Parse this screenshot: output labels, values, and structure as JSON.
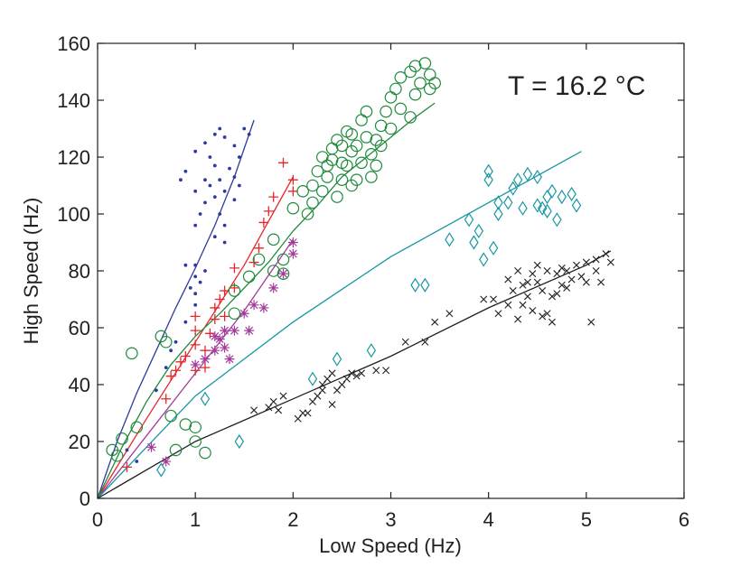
{
  "chart_data": {
    "type": "scatter",
    "title": "",
    "annotation": "T = 16.2 °C",
    "xlabel": "Low Speed (Hz)",
    "ylabel": "High Speed (Hz)",
    "xlim": [
      0,
      6
    ],
    "ylim": [
      0,
      160
    ],
    "xticks": [
      "0",
      "1",
      "2",
      "3",
      "4",
      "5",
      "6"
    ],
    "yticks": [
      "0",
      "20",
      "40",
      "60",
      "80",
      "100",
      "120",
      "140",
      "160"
    ],
    "grid": false,
    "legend": "none",
    "series": [
      {
        "name": "blue-dots",
        "marker": "dot",
        "color": "#2e3a9e",
        "points": [
          [
            0.3,
            17
          ],
          [
            0.4,
            13
          ],
          [
            0.6,
            38
          ],
          [
            0.7,
            46
          ],
          [
            0.75,
            52
          ],
          [
            0.8,
            55
          ],
          [
            0.9,
            62
          ],
          [
            0.9,
            82
          ],
          [
            0.95,
            74
          ],
          [
            1.0,
            68
          ],
          [
            1.0,
            72
          ],
          [
            1.0,
            78
          ],
          [
            1.0,
            82
          ],
          [
            1.05,
            76
          ],
          [
            1.1,
            80
          ],
          [
            1.0,
            96
          ],
          [
            1.05,
            100
          ],
          [
            1.1,
            104
          ],
          [
            1.0,
            108
          ],
          [
            1.1,
            112
          ],
          [
            1.15,
            110
          ],
          [
            1.2,
            106
          ],
          [
            1.25,
            100
          ],
          [
            1.2,
            92
          ],
          [
            1.3,
            96
          ],
          [
            1.3,
            90
          ],
          [
            0.85,
            112
          ],
          [
            0.9,
            115
          ],
          [
            1.0,
            122
          ],
          [
            1.1,
            125
          ],
          [
            1.2,
            128
          ],
          [
            1.25,
            130
          ],
          [
            1.3,
            127
          ],
          [
            1.4,
            124
          ],
          [
            1.45,
            120
          ],
          [
            1.5,
            130
          ],
          [
            1.55,
            128
          ],
          [
            1.35,
            116
          ],
          [
            1.4,
            113
          ],
          [
            1.2,
            117
          ],
          [
            1.15,
            120
          ],
          [
            1.3,
            108
          ],
          [
            1.25,
            112
          ],
          [
            1.4,
            105
          ],
          [
            1.45,
            110
          ]
        ],
        "fit": [
          [
            0,
            0
          ],
          [
            0.2,
            20
          ],
          [
            0.4,
            37
          ],
          [
            0.6,
            52
          ],
          [
            0.8,
            67
          ],
          [
            1.0,
            81
          ],
          [
            1.2,
            96
          ],
          [
            1.4,
            113
          ],
          [
            1.6,
            133
          ]
        ]
      },
      {
        "name": "red-plus",
        "marker": "plus",
        "color": "#e8262a",
        "points": [
          [
            0.3,
            11
          ],
          [
            0.7,
            35
          ],
          [
            0.75,
            43
          ],
          [
            0.8,
            45
          ],
          [
            0.85,
            48
          ],
          [
            0.9,
            50
          ],
          [
            1.0,
            45
          ],
          [
            1.0,
            54
          ],
          [
            1.0,
            59
          ],
          [
            1.0,
            64
          ],
          [
            1.1,
            46
          ],
          [
            1.1,
            52
          ],
          [
            1.15,
            58
          ],
          [
            1.2,
            63
          ],
          [
            1.2,
            67
          ],
          [
            1.25,
            70
          ],
          [
            1.3,
            64
          ],
          [
            1.3,
            73
          ],
          [
            1.4,
            74
          ],
          [
            1.4,
            81
          ],
          [
            1.6,
            83
          ],
          [
            1.65,
            88
          ],
          [
            1.7,
            97
          ],
          [
            1.75,
            101
          ],
          [
            1.8,
            106
          ],
          [
            1.9,
            118
          ],
          [
            2.0,
            108
          ],
          [
            2.0,
            112
          ]
        ],
        "fit": [
          [
            0,
            0
          ],
          [
            0.5,
            28
          ],
          [
            1.0,
            55
          ],
          [
            1.5,
            82
          ],
          [
            2.0,
            113
          ]
        ]
      },
      {
        "name": "magenta-asterisk",
        "marker": "asterisk",
        "color": "#a23b9a",
        "points": [
          [
            0.55,
            18
          ],
          [
            0.7,
            13
          ],
          [
            1.0,
            47
          ],
          [
            1.1,
            49
          ],
          [
            1.2,
            52
          ],
          [
            1.2,
            57
          ],
          [
            1.25,
            56
          ],
          [
            1.3,
            53
          ],
          [
            1.3,
            59
          ],
          [
            1.35,
            49
          ],
          [
            1.4,
            59
          ],
          [
            1.5,
            65
          ],
          [
            1.55,
            59
          ],
          [
            1.6,
            68
          ],
          [
            1.7,
            67
          ],
          [
            1.8,
            74
          ],
          [
            1.9,
            79
          ],
          [
            2.0,
            86
          ],
          [
            2.0,
            90
          ]
        ],
        "fit": [
          [
            0,
            0
          ],
          [
            0.5,
            22
          ],
          [
            1.0,
            44
          ],
          [
            1.5,
            66
          ],
          [
            2.0,
            91
          ]
        ]
      },
      {
        "name": "green-circle",
        "marker": "circle",
        "color": "#1f8a3c",
        "points": [
          [
            0.15,
            17
          ],
          [
            0.2,
            15
          ],
          [
            0.25,
            21
          ],
          [
            0.35,
            51
          ],
          [
            0.4,
            25
          ],
          [
            0.65,
            57
          ],
          [
            0.7,
            55
          ],
          [
            0.75,
            29
          ],
          [
            0.8,
            17
          ],
          [
            0.9,
            26
          ],
          [
            1.0,
            25
          ],
          [
            1.0,
            20
          ],
          [
            1.1,
            16
          ],
          [
            1.4,
            65
          ],
          [
            1.4,
            73
          ],
          [
            1.55,
            78
          ],
          [
            1.65,
            84
          ],
          [
            1.8,
            80
          ],
          [
            1.8,
            91
          ],
          [
            1.9,
            84
          ],
          [
            1.9,
            79
          ],
          [
            2.0,
            102
          ],
          [
            2.1,
            108
          ],
          [
            2.15,
            100
          ],
          [
            2.2,
            104
          ],
          [
            2.2,
            110
          ],
          [
            2.25,
            115
          ],
          [
            2.3,
            108
          ],
          [
            2.3,
            120
          ],
          [
            2.35,
            113
          ],
          [
            2.35,
            117
          ],
          [
            2.4,
            119
          ],
          [
            2.4,
            123
          ],
          [
            2.45,
            106
          ],
          [
            2.45,
            126
          ],
          [
            2.5,
            112
          ],
          [
            2.5,
            118
          ],
          [
            2.5,
            124
          ],
          [
            2.55,
            117
          ],
          [
            2.55,
            129
          ],
          [
            2.6,
            110
          ],
          [
            2.6,
            122
          ],
          [
            2.6,
            128
          ],
          [
            2.65,
            112
          ],
          [
            2.65,
            124
          ],
          [
            2.7,
            118
          ],
          [
            2.7,
            133
          ],
          [
            2.75,
            127
          ],
          [
            2.75,
            136
          ],
          [
            2.8,
            113
          ],
          [
            2.8,
            121
          ],
          [
            2.85,
            117
          ],
          [
            2.85,
            126
          ],
          [
            2.9,
            124
          ],
          [
            2.9,
            131
          ],
          [
            2.95,
            136
          ],
          [
            3.0,
            130
          ],
          [
            3.0,
            141
          ],
          [
            3.05,
            144
          ],
          [
            3.1,
            137
          ],
          [
            3.1,
            148
          ],
          [
            3.2,
            134
          ],
          [
            3.2,
            150
          ],
          [
            3.25,
            142
          ],
          [
            3.25,
            152
          ],
          [
            3.3,
            146
          ],
          [
            3.35,
            153
          ],
          [
            3.4,
            144
          ],
          [
            3.4,
            149
          ],
          [
            3.45,
            146
          ]
        ],
        "fit": [
          [
            0,
            0
          ],
          [
            0.25,
            18
          ],
          [
            0.5,
            34
          ],
          [
            0.75,
            47
          ],
          [
            1.0,
            57
          ],
          [
            1.25,
            65
          ],
          [
            1.5,
            74
          ],
          [
            1.75,
            83
          ],
          [
            2.0,
            94
          ],
          [
            2.25,
            103
          ],
          [
            2.5,
            113
          ],
          [
            2.75,
            120
          ],
          [
            3.0,
            127
          ],
          [
            3.25,
            134
          ],
          [
            3.45,
            139
          ]
        ]
      },
      {
        "name": "teal-diamond",
        "marker": "diamond",
        "color": "#1897a3",
        "points": [
          [
            0.65,
            10
          ],
          [
            1.1,
            35
          ],
          [
            1.45,
            20
          ],
          [
            2.2,
            42
          ],
          [
            2.45,
            49
          ],
          [
            2.8,
            52
          ],
          [
            3.25,
            75
          ],
          [
            3.35,
            75
          ],
          [
            3.6,
            91
          ],
          [
            3.8,
            98
          ],
          [
            3.85,
            90
          ],
          [
            3.9,
            94
          ],
          [
            3.95,
            84
          ],
          [
            4.0,
            112
          ],
          [
            4.0,
            115
          ],
          [
            4.05,
            88
          ],
          [
            4.1,
            100
          ],
          [
            4.1,
            104
          ],
          [
            4.2,
            104
          ],
          [
            4.25,
            109
          ],
          [
            4.3,
            112
          ],
          [
            4.35,
            102
          ],
          [
            4.4,
            114
          ],
          [
            4.5,
            113
          ],
          [
            4.5,
            103
          ],
          [
            4.55,
            102
          ],
          [
            4.6,
            101
          ],
          [
            4.6,
            106
          ],
          [
            4.65,
            108
          ],
          [
            4.7,
            98
          ],
          [
            4.75,
            106
          ],
          [
            4.85,
            107
          ],
          [
            4.9,
            103
          ]
        ],
        "fit": [
          [
            0,
            0
          ],
          [
            1.0,
            36
          ],
          [
            2.0,
            62
          ],
          [
            3.0,
            85
          ],
          [
            4.0,
            104
          ],
          [
            4.95,
            122
          ]
        ]
      },
      {
        "name": "black-x",
        "marker": "x",
        "color": "#231f20",
        "points": [
          [
            1.6,
            31
          ],
          [
            1.75,
            32
          ],
          [
            1.8,
            34
          ],
          [
            1.85,
            31
          ],
          [
            1.9,
            36
          ],
          [
            2.05,
            28
          ],
          [
            2.1,
            30
          ],
          [
            2.15,
            30
          ],
          [
            2.2,
            34
          ],
          [
            2.25,
            36
          ],
          [
            2.3,
            40
          ],
          [
            2.35,
            42
          ],
          [
            2.4,
            44
          ],
          [
            2.45,
            38
          ],
          [
            2.5,
            40
          ],
          [
            2.55,
            42
          ],
          [
            2.6,
            44
          ],
          [
            2.65,
            43
          ],
          [
            2.7,
            44
          ],
          [
            2.85,
            45
          ],
          [
            2.95,
            45
          ],
          [
            2.3,
            38
          ],
          [
            2.4,
            33
          ],
          [
            3.15,
            55
          ],
          [
            3.35,
            55
          ],
          [
            3.45,
            62
          ],
          [
            3.6,
            65
          ],
          [
            3.95,
            70
          ],
          [
            4.05,
            70
          ],
          [
            4.1,
            65
          ],
          [
            4.2,
            68
          ],
          [
            4.25,
            73
          ],
          [
            4.3,
            63
          ],
          [
            4.35,
            68
          ],
          [
            4.35,
            75
          ],
          [
            4.4,
            71
          ],
          [
            4.4,
            76
          ],
          [
            4.45,
            79
          ],
          [
            4.5,
            76
          ],
          [
            4.5,
            82
          ],
          [
            4.55,
            64
          ],
          [
            4.55,
            73
          ],
          [
            4.6,
            80
          ],
          [
            4.6,
            65
          ],
          [
            4.65,
            62
          ],
          [
            4.7,
            72
          ],
          [
            4.7,
            79
          ],
          [
            4.75,
            75
          ],
          [
            4.8,
            80
          ],
          [
            4.85,
            77
          ],
          [
            4.9,
            82
          ],
          [
            4.95,
            78
          ],
          [
            5.0,
            83
          ],
          [
            5.0,
            76
          ],
          [
            5.05,
            62
          ],
          [
            5.1,
            80
          ],
          [
            5.1,
            84
          ],
          [
            5.15,
            76
          ],
          [
            5.2,
            86
          ],
          [
            5.25,
            83
          ],
          [
            4.8,
            74
          ],
          [
            4.2,
            77
          ],
          [
            4.3,
            80
          ],
          [
            4.45,
            66
          ],
          [
            4.65,
            71
          ],
          [
            4.75,
            81
          ]
        ],
        "fit": [
          [
            0,
            0
          ],
          [
            1.0,
            20
          ],
          [
            2.0,
            35
          ],
          [
            3.0,
            50
          ],
          [
            4.0,
            67
          ],
          [
            5.0,
            82
          ],
          [
            5.25,
            87
          ]
        ]
      }
    ]
  }
}
